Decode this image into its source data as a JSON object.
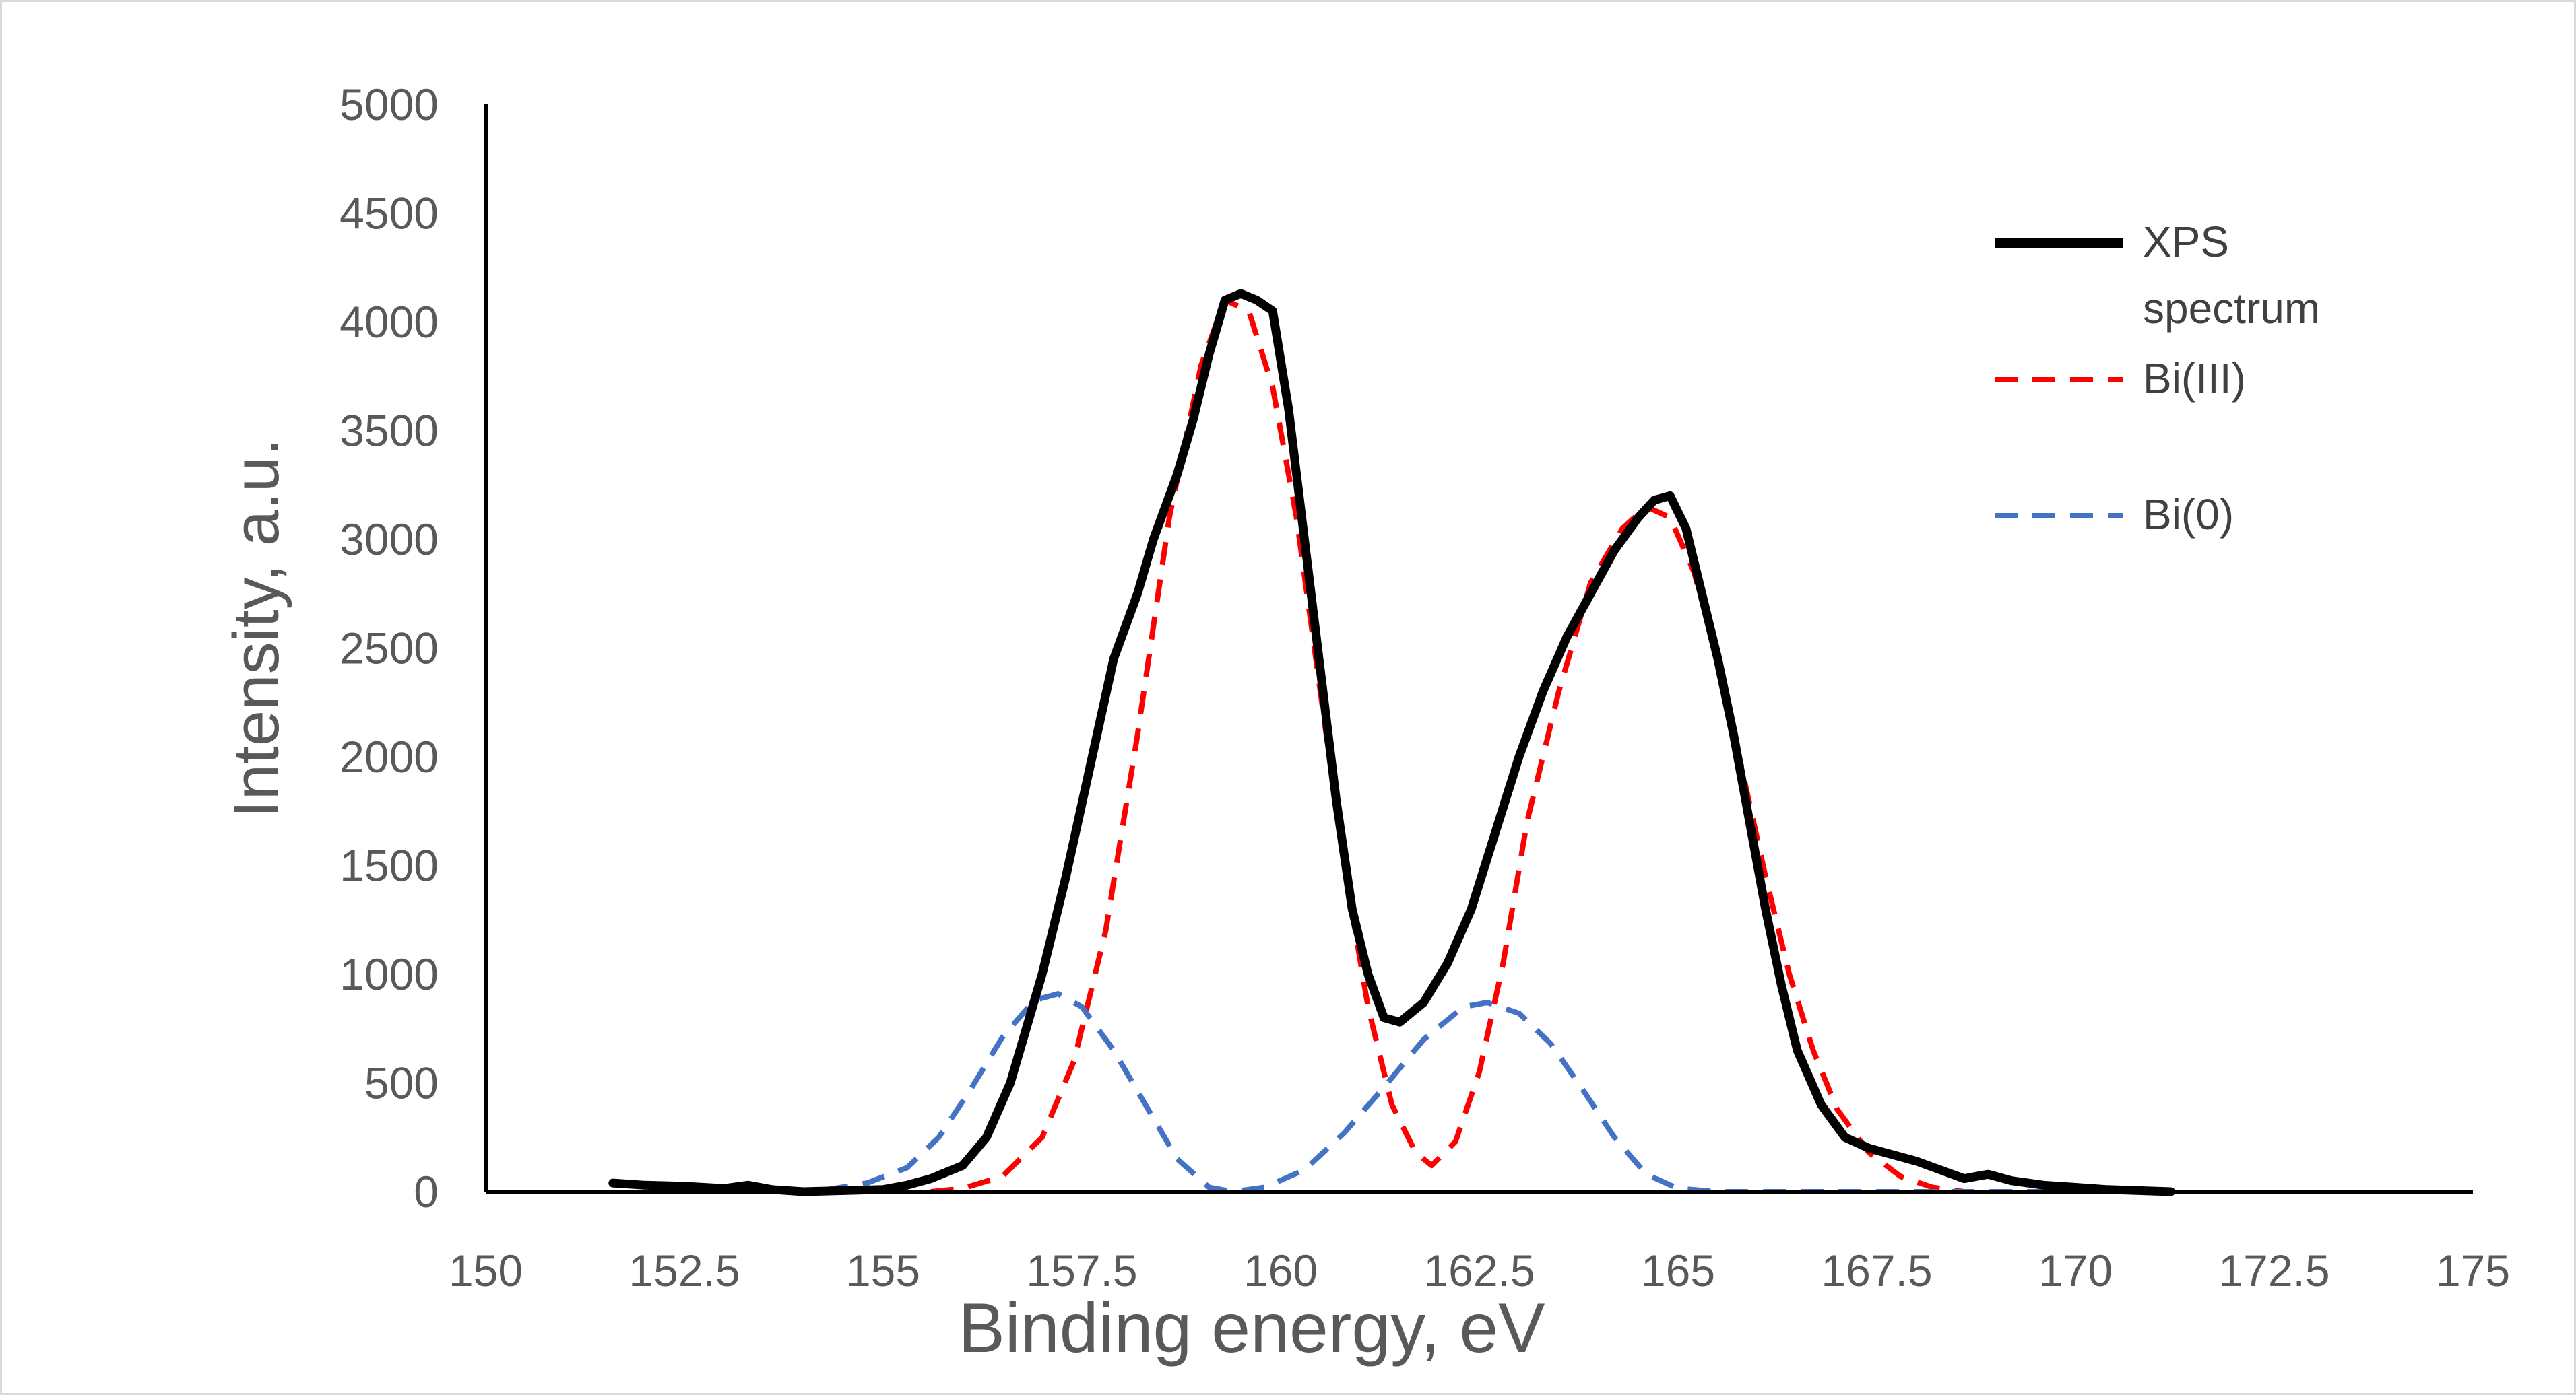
{
  "chart_data": {
    "type": "line",
    "title": "",
    "xlabel": "Binding energy, eV",
    "ylabel": "Intensity, a.u.",
    "xlim": [
      150,
      175
    ],
    "ylim": [
      0,
      5000
    ],
    "x_ticks": [
      "150",
      "152.5",
      "155",
      "157.5",
      "160",
      "162.5",
      "165",
      "167.5",
      "170",
      "172.5",
      "175"
    ],
    "y_ticks": [
      "0",
      "500",
      "1000",
      "1500",
      "2000",
      "2500",
      "3000",
      "3500",
      "4000",
      "4500",
      "5000"
    ],
    "grid": false,
    "legend_position": "top-right",
    "series": [
      {
        "name_lines": [
          "XPS",
          "spectrum"
        ],
        "style": "solid",
        "color": "#000000",
        "points": [
          [
            151.6,
            40
          ],
          [
            152.0,
            30
          ],
          [
            152.5,
            25
          ],
          [
            153.0,
            15
          ],
          [
            153.3,
            30
          ],
          [
            153.6,
            10
          ],
          [
            154.0,
            0
          ],
          [
            154.5,
            5
          ],
          [
            155.0,
            10
          ],
          [
            155.3,
            30
          ],
          [
            155.6,
            60
          ],
          [
            156.0,
            120
          ],
          [
            156.3,
            250
          ],
          [
            156.6,
            500
          ],
          [
            156.8,
            750
          ],
          [
            157.0,
            1000
          ],
          [
            157.3,
            1450
          ],
          [
            157.6,
            1950
          ],
          [
            157.9,
            2450
          ],
          [
            158.2,
            2750
          ],
          [
            158.4,
            3000
          ],
          [
            158.7,
            3300
          ],
          [
            158.9,
            3550
          ],
          [
            159.1,
            3850
          ],
          [
            159.3,
            4100
          ],
          [
            159.5,
            4130
          ],
          [
            159.7,
            4100
          ],
          [
            159.9,
            4050
          ],
          [
            160.1,
            3600
          ],
          [
            160.3,
            3000
          ],
          [
            160.5,
            2400
          ],
          [
            160.7,
            1800
          ],
          [
            160.9,
            1300
          ],
          [
            161.1,
            1000
          ],
          [
            161.3,
            800
          ],
          [
            161.5,
            780
          ],
          [
            161.8,
            870
          ],
          [
            162.1,
            1050
          ],
          [
            162.4,
            1300
          ],
          [
            162.7,
            1650
          ],
          [
            163.0,
            2000
          ],
          [
            163.3,
            2300
          ],
          [
            163.6,
            2550
          ],
          [
            163.9,
            2750
          ],
          [
            164.2,
            2950
          ],
          [
            164.5,
            3100
          ],
          [
            164.7,
            3180
          ],
          [
            164.9,
            3200
          ],
          [
            165.1,
            3050
          ],
          [
            165.3,
            2750
          ],
          [
            165.5,
            2450
          ],
          [
            165.7,
            2100
          ],
          [
            165.9,
            1700
          ],
          [
            166.1,
            1300
          ],
          [
            166.3,
            950
          ],
          [
            166.5,
            650
          ],
          [
            166.8,
            400
          ],
          [
            167.1,
            250
          ],
          [
            167.4,
            200
          ],
          [
            167.7,
            170
          ],
          [
            168.0,
            140
          ],
          [
            168.3,
            100
          ],
          [
            168.6,
            60
          ],
          [
            168.9,
            80
          ],
          [
            169.2,
            50
          ],
          [
            169.6,
            30
          ],
          [
            170.0,
            20
          ],
          [
            170.4,
            10
          ],
          [
            170.8,
            5
          ],
          [
            171.2,
            0
          ]
        ]
      },
      {
        "name_lines": [
          "Bi(III)"
        ],
        "style": "dashed",
        "color": "#ff0000",
        "points": [
          [
            155.6,
            0
          ],
          [
            156.0,
            15
          ],
          [
            156.5,
            70
          ],
          [
            157.0,
            250
          ],
          [
            157.4,
            600
          ],
          [
            157.8,
            1200
          ],
          [
            158.2,
            2100
          ],
          [
            158.6,
            3100
          ],
          [
            159.0,
            3800
          ],
          [
            159.3,
            4100
          ],
          [
            159.6,
            4050
          ],
          [
            159.9,
            3700
          ],
          [
            160.2,
            3100
          ],
          [
            160.5,
            2300
          ],
          [
            160.8,
            1500
          ],
          [
            161.1,
            850
          ],
          [
            161.4,
            400
          ],
          [
            161.7,
            180
          ],
          [
            161.9,
            120
          ],
          [
            162.2,
            230
          ],
          [
            162.5,
            550
          ],
          [
            162.8,
            1050
          ],
          [
            163.1,
            1700
          ],
          [
            163.5,
            2300
          ],
          [
            163.9,
            2800
          ],
          [
            164.3,
            3050
          ],
          [
            164.6,
            3150
          ],
          [
            164.9,
            3100
          ],
          [
            165.2,
            2850
          ],
          [
            165.5,
            2450
          ],
          [
            165.8,
            1950
          ],
          [
            166.1,
            1450
          ],
          [
            166.4,
            1000
          ],
          [
            166.7,
            650
          ],
          [
            167.0,
            380
          ],
          [
            167.4,
            180
          ],
          [
            167.8,
            70
          ],
          [
            168.2,
            20
          ],
          [
            168.6,
            0
          ]
        ]
      },
      {
        "name_lines": [
          "Bi(0)"
        ],
        "style": "dashed",
        "color": "#4472c4",
        "points": [
          [
            153.8,
            0
          ],
          [
            154.3,
            10
          ],
          [
            154.8,
            40
          ],
          [
            155.3,
            110
          ],
          [
            155.7,
            250
          ],
          [
            156.1,
            470
          ],
          [
            156.5,
            710
          ],
          [
            156.9,
            880
          ],
          [
            157.2,
            910
          ],
          [
            157.5,
            850
          ],
          [
            157.9,
            650
          ],
          [
            158.3,
            400
          ],
          [
            158.7,
            150
          ],
          [
            159.1,
            20
          ],
          [
            159.4,
            0
          ],
          [
            159.8,
            20
          ],
          [
            160.3,
            100
          ],
          [
            160.8,
            270
          ],
          [
            161.3,
            480
          ],
          [
            161.8,
            700
          ],
          [
            162.3,
            850
          ],
          [
            162.6,
            870
          ],
          [
            163.0,
            820
          ],
          [
            163.4,
            680
          ],
          [
            163.8,
            470
          ],
          [
            164.2,
            250
          ],
          [
            164.6,
            80
          ],
          [
            165.0,
            15
          ],
          [
            165.5,
            0
          ],
          [
            166.5,
            0
          ],
          [
            168.0,
            0
          ],
          [
            170.0,
            0
          ],
          [
            170.8,
            0
          ]
        ]
      }
    ]
  }
}
